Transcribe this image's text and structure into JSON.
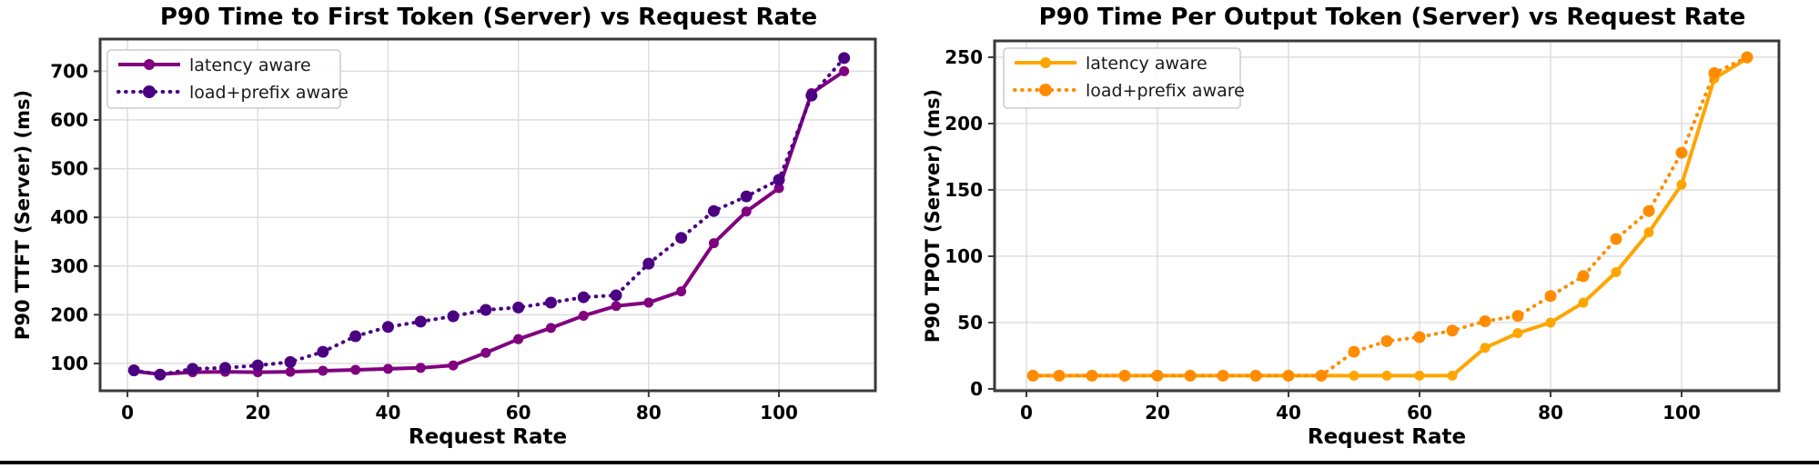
{
  "page": {
    "background": "#ffffff",
    "bottom_bar_color": "#000000"
  },
  "chart_data": [
    {
      "type": "line",
      "title": "P90 Time to First Token (Server) vs Request Rate",
      "xlabel": "Request Rate",
      "ylabel": "P90 TTFT (Server) (ms)",
      "x_ticks": [
        0,
        20,
        40,
        60,
        80,
        100
      ],
      "y_ticks": [
        100,
        200,
        300,
        400,
        500,
        600,
        700
      ],
      "xlim": [
        -4.2,
        114.8
      ],
      "ylim": [
        44,
        766
      ],
      "grid": true,
      "legend_position": "upper left",
      "x": [
        1,
        5,
        10,
        15,
        20,
        25,
        30,
        35,
        40,
        45,
        50,
        55,
        60,
        65,
        70,
        75,
        80,
        85,
        90,
        95,
        100,
        105,
        110
      ],
      "series": [
        {
          "name": "latency aware",
          "linestyle": "solid",
          "marker": "circle",
          "color": "#800080",
          "values": [
            84,
            78,
            82,
            83,
            82,
            83,
            85,
            87,
            89,
            91,
            96,
            122,
            150,
            173,
            198,
            218,
            225,
            248,
            347,
            412,
            460,
            655,
            700
          ]
        },
        {
          "name": "load+prefix aware",
          "linestyle": "dotted",
          "marker": "circle",
          "color": "#4B0082",
          "values": [
            86,
            77,
            89,
            91,
            96,
            103,
            124,
            156,
            175,
            186,
            197,
            210,
            215,
            225,
            236,
            240,
            305,
            358,
            413,
            443,
            477,
            650,
            727
          ]
        }
      ]
    },
    {
      "type": "line",
      "title": "P90 Time Per Output Token (Server) vs Request Rate",
      "xlabel": "Request Rate",
      "ylabel": "P90 TPOT (Server) (ms)",
      "x_ticks": [
        0,
        20,
        40,
        60,
        80,
        100
      ],
      "y_ticks": [
        0,
        50,
        100,
        150,
        200,
        250
      ],
      "xlim": [
        -4.86,
        114.86
      ],
      "ylim": [
        -1.4,
        262.3
      ],
      "grid": true,
      "legend_position": "upper left",
      "x": [
        1,
        5,
        10,
        15,
        20,
        25,
        30,
        35,
        40,
        45,
        50,
        55,
        60,
        65,
        70,
        75,
        80,
        85,
        90,
        95,
        100,
        105,
        110
      ],
      "series": [
        {
          "name": "latency aware",
          "linestyle": "solid",
          "marker": "circle",
          "color": "#FFA500",
          "values": [
            10,
            10,
            10,
            10,
            10,
            10,
            10,
            10,
            10,
            10,
            10,
            10,
            10,
            10,
            31,
            42,
            50,
            65,
            88,
            118,
            154,
            234,
            249
          ]
        },
        {
          "name": "load+prefix aware",
          "linestyle": "dotted",
          "marker": "circle",
          "color": "#FF8C00",
          "values": [
            10,
            10,
            10,
            10,
            10,
            10,
            10,
            10,
            10,
            10,
            28,
            36,
            39,
            44,
            51,
            55,
            70,
            85,
            113,
            134,
            178,
            238,
            250
          ]
        }
      ]
    }
  ]
}
